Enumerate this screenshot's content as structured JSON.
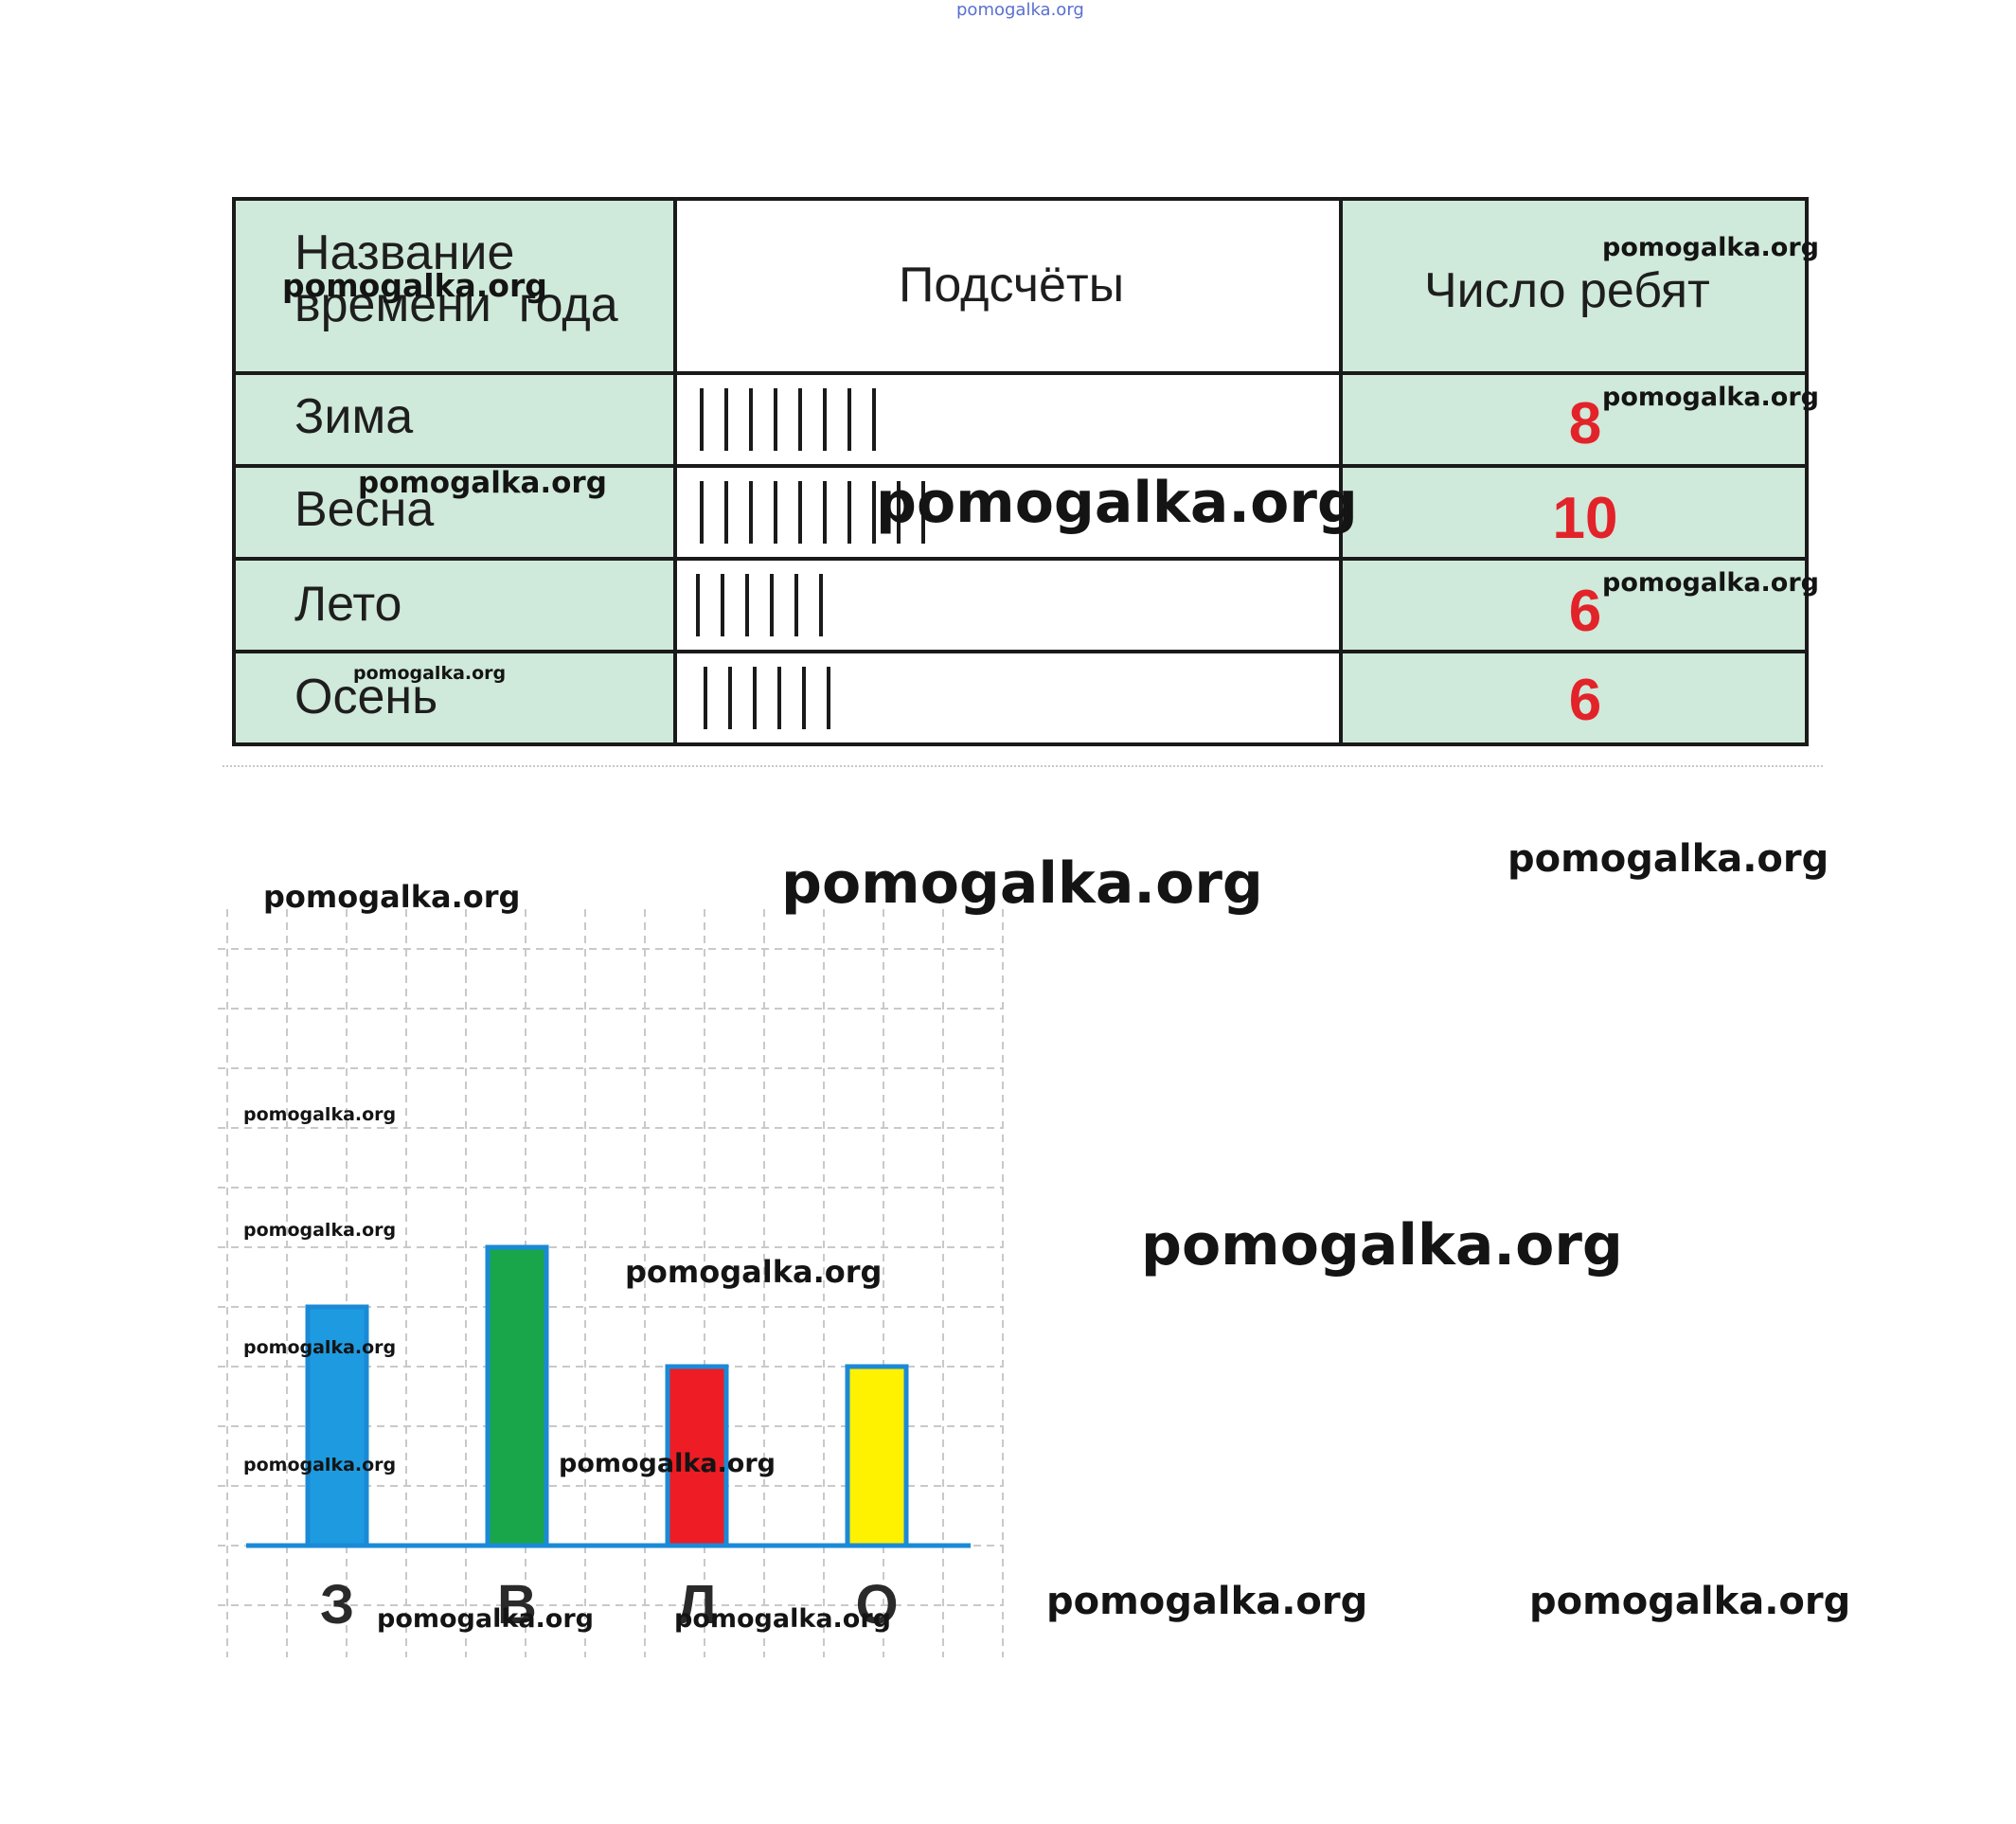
{
  "top_watermark": "pomogalka.org",
  "table": {
    "headers": [
      "Название времени года",
      "Подсчёты",
      "Число ребят"
    ],
    "header_first_line1": "Название",
    "header_first_line2": "времени  года",
    "rows": [
      {
        "season": "Зима",
        "tally": 8,
        "count": "8"
      },
      {
        "season": "Весна",
        "tally": 10,
        "count": "10"
      },
      {
        "season": "Лето",
        "tally": 6,
        "count": "6"
      },
      {
        "season": "Осень",
        "tally": 6,
        "count": "6"
      }
    ],
    "colors": {
      "header_fill": "#cfe9da",
      "count_color": "#e2232a",
      "grid": "#1a1a1a"
    }
  },
  "watermarks": [
    "pomogalka.org",
    "pomogalka.org",
    "pomogalka.org",
    "pomogalka.org",
    "pomogalka.org",
    "pomogalka.org",
    "pomogalka.org",
    "pomogalka.org",
    "pomogalka.org",
    "pomogalka.org",
    "pomogalka.org",
    "pomogalka.org",
    "pomogalka.org",
    "pomogalka.org",
    "pomogalka.org",
    "pomogalka.org",
    "pomogalka.org",
    "pomogalka.org",
    "pomogalka.org",
    "pomogalka.org"
  ],
  "chart_data": {
    "type": "bar",
    "categories": [
      "З",
      "В",
      "Л",
      "О"
    ],
    "values": [
      8,
      10,
      6,
      6
    ],
    "colors": [
      "#1e9be0",
      "#19a54a",
      "#ee1c24",
      "#fff200"
    ],
    "outline_color": "#1b8ad6",
    "grid": true,
    "ylim": [
      0,
      12
    ]
  }
}
